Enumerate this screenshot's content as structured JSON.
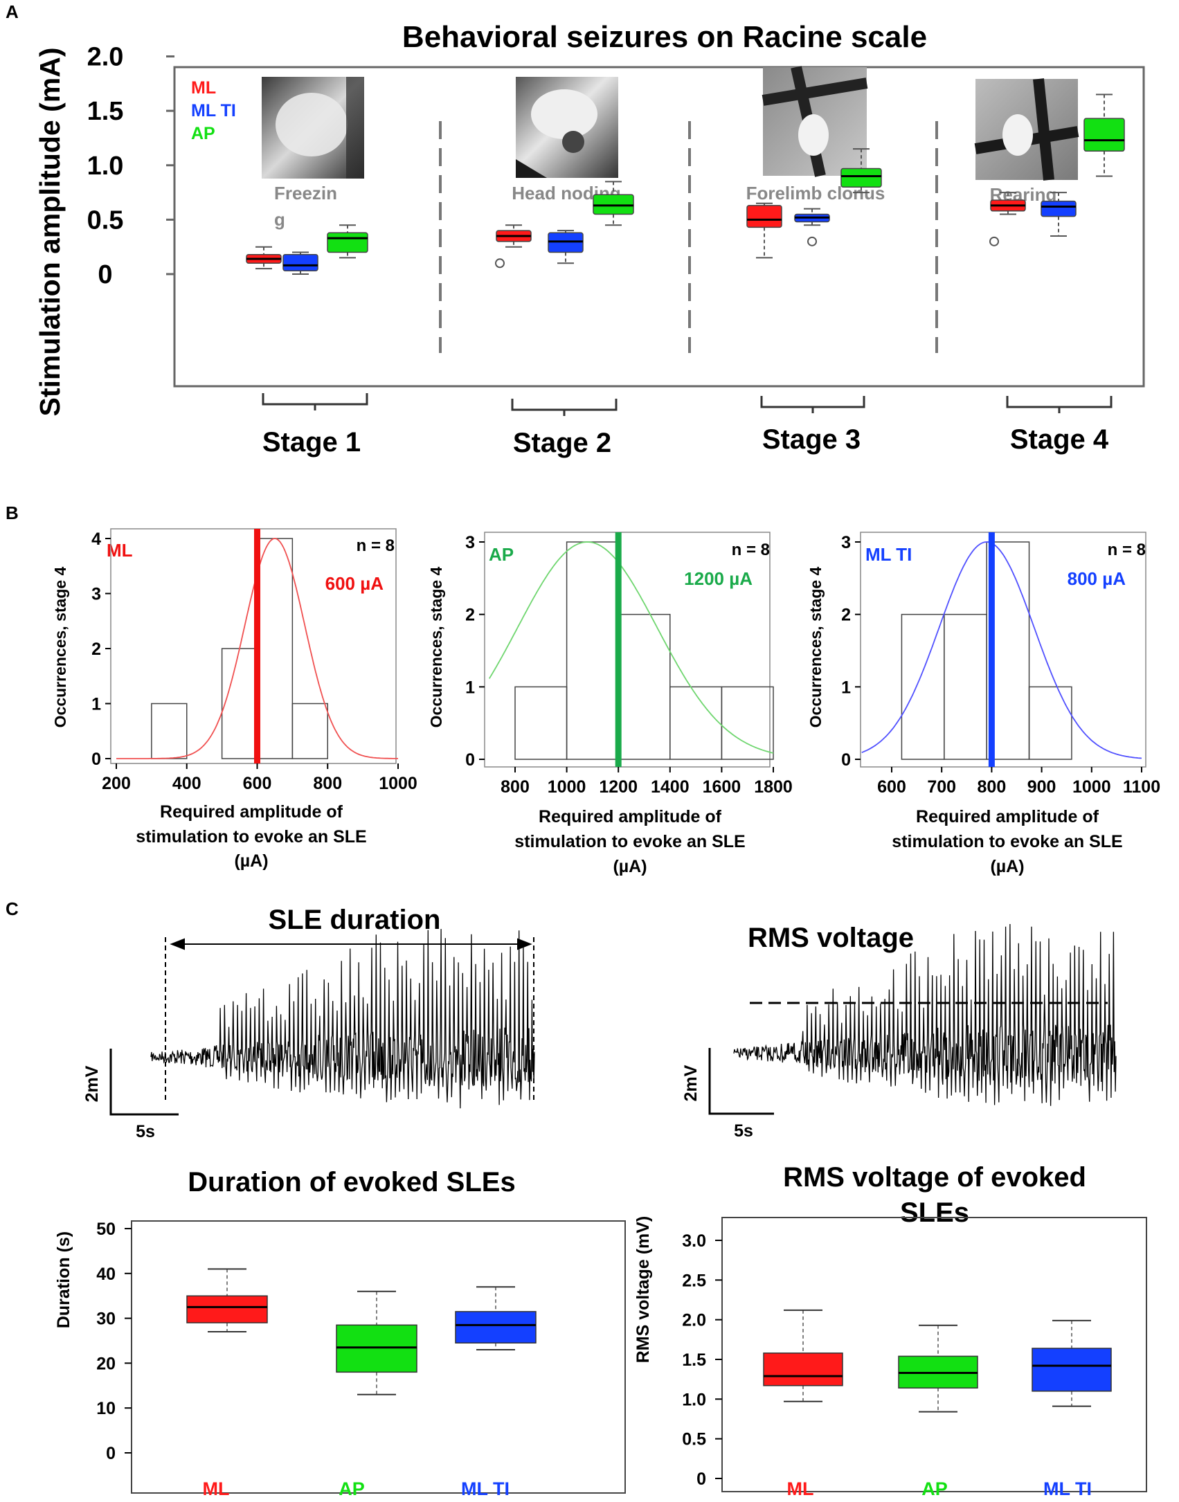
{
  "colors": {
    "ML": "#ff1a1a",
    "AP": "#12e012",
    "MLTI": "#1440ff",
    "APline": "#1aaa4a",
    "MLline": "#f01010",
    "grey": "#808080",
    "dark": "#000000"
  },
  "panelA": {
    "label": "A",
    "title": "Behavioral seizures on Racine scale",
    "ylabel": "Stimulation amplitude (mA)",
    "yticks": [
      "2.0",
      "1.5",
      "1.0",
      "0.5",
      "0"
    ],
    "legend": [
      "ML",
      "ML TI",
      "AP"
    ],
    "behaviors": [
      "Freezin",
      "g",
      "Head noding",
      "Forelimb clonus",
      "Rearing"
    ],
    "stages": [
      "Stage 1",
      "Stage 2",
      "Stage 3",
      "Stage 4"
    ],
    "photo_labels": [
      "freezing-photo",
      "head-noding-photo",
      "forelimb-clonus-photo",
      "rearing-photo"
    ]
  },
  "panelB": {
    "label": "B",
    "ylabel": "Occurrences, stage 4",
    "xlabel_line1": "Required amplitude of",
    "xlabel_line2": "stimulation to evoke an SLE",
    "xlabel_line3": "(µA)",
    "charts": [
      {
        "name": "ML",
        "n": "n = 8",
        "value_label": "600 µA"
      },
      {
        "name": "AP",
        "n": "n = 8",
        "value_label": "1200 µA"
      },
      {
        "name": "ML TI",
        "n": "n = 8",
        "value_label": "800 µA"
      }
    ]
  },
  "panelC": {
    "label": "C",
    "trace1_title": "SLE duration",
    "trace2_title": "RMS voltage",
    "scale_v": "2mV",
    "scale_t": "5s",
    "box1_title": "Duration of evoked SLEs",
    "box1_ylabel": "Duration (s)",
    "box2_title_line1": "RMS voltage of evoked",
    "box2_title_line2": "SLEs",
    "box2_ylabel": "RMS voltage (mV)",
    "groups": [
      "ML",
      "AP",
      "ML TI"
    ]
  },
  "chart_data": [
    {
      "type": "box",
      "title": "Behavioral seizures on Racine scale",
      "ylabel": "Stimulation amplitude (mA)",
      "ylim": [
        0,
        2.0
      ],
      "yticks": [
        0,
        0.5,
        1.0,
        1.5,
        2.0
      ],
      "categories": [
        "Stage 1",
        "Stage 2",
        "Stage 3",
        "Stage 4"
      ],
      "series": [
        {
          "name": "ML",
          "color": "#ff1a1a",
          "boxes": [
            {
              "min": 0.05,
              "q1": 0.1,
              "median": 0.14,
              "q3": 0.18,
              "max": 0.25,
              "outliers": []
            },
            {
              "min": 0.25,
              "q1": 0.3,
              "median": 0.35,
              "q3": 0.4,
              "max": 0.45,
              "outliers": [
                0.1
              ]
            },
            {
              "min": 0.15,
              "q1": 0.43,
              "median": 0.5,
              "q3": 0.63,
              "max": 0.65,
              "outliers": []
            },
            {
              "min": 0.55,
              "q1": 0.58,
              "median": 0.63,
              "q3": 0.68,
              "max": 0.75,
              "outliers": [
                0.3
              ]
            }
          ]
        },
        {
          "name": "ML TI",
          "color": "#1440ff",
          "boxes": [
            {
              "min": 0.0,
              "q1": 0.03,
              "median": 0.08,
              "q3": 0.18,
              "max": 0.2,
              "outliers": []
            },
            {
              "min": 0.1,
              "q1": 0.2,
              "median": 0.3,
              "q3": 0.38,
              "max": 0.4,
              "outliers": []
            },
            {
              "min": 0.45,
              "q1": 0.48,
              "median": 0.52,
              "q3": 0.55,
              "max": 0.6,
              "outliers": [
                0.3
              ]
            },
            {
              "min": 0.35,
              "q1": 0.53,
              "median": 0.62,
              "q3": 0.67,
              "max": 0.75,
              "outliers": []
            }
          ]
        },
        {
          "name": "AP",
          "color": "#12e012",
          "boxes": [
            {
              "min": 0.15,
              "q1": 0.2,
              "median": 0.33,
              "q3": 0.38,
              "max": 0.45,
              "outliers": []
            },
            {
              "min": 0.45,
              "q1": 0.55,
              "median": 0.63,
              "q3": 0.73,
              "max": 0.85,
              "outliers": []
            },
            {
              "min": 0.75,
              "q1": 0.8,
              "median": 0.9,
              "q3": 0.97,
              "max": 1.15,
              "outliers": []
            },
            {
              "min": 0.9,
              "q1": 1.13,
              "median": 1.23,
              "q3": 1.43,
              "max": 1.65,
              "outliers": []
            }
          ]
        }
      ]
    },
    {
      "type": "histogram",
      "title": "ML",
      "xlabel": "Required amplitude of stimulation to evoke an SLE (µA)",
      "ylabel": "Occurrences, stage 4",
      "xlim": [
        200,
        1000
      ],
      "xticks": [
        200,
        400,
        600,
        800,
        1000
      ],
      "ylim": [
        0,
        4
      ],
      "yticks": [
        0,
        1,
        2,
        3,
        4
      ],
      "bins": [
        [
          300,
          400,
          1
        ],
        [
          400,
          500,
          0
        ],
        [
          500,
          600,
          2
        ],
        [
          600,
          700,
          4
        ],
        [
          700,
          800,
          1
        ]
      ],
      "marker": 600,
      "normal_fit": {
        "mean": 650,
        "sd": 85,
        "peak": 4
      },
      "n": 8
    },
    {
      "type": "histogram",
      "title": "AP",
      "xlabel": "Required amplitude of stimulation to evoke an SLE (µA)",
      "ylabel": "Occurrences, stage 4",
      "xlim": [
        700,
        1800
      ],
      "xticks": [
        800,
        1000,
        1200,
        1400,
        1600,
        1800
      ],
      "ylim": [
        0,
        3
      ],
      "yticks": [
        0,
        1,
        2,
        3
      ],
      "bins": [
        [
          800,
          1000,
          1
        ],
        [
          1000,
          1200,
          3
        ],
        [
          1200,
          1400,
          2
        ],
        [
          1400,
          1600,
          1
        ],
        [
          1600,
          1800,
          1
        ]
      ],
      "marker": 1200,
      "normal_fit": {
        "mean": 1080,
        "sd": 270,
        "peak": 3
      },
      "n": 8
    },
    {
      "type": "histogram",
      "title": "ML TI",
      "xlabel": "Required amplitude of stimulation to evoke an SLE (µA)",
      "ylabel": "Occurrences, stage 4",
      "xlim": [
        540,
        1100
      ],
      "xticks": [
        600,
        700,
        800,
        900,
        1000,
        1100
      ],
      "ylim": [
        0,
        3
      ],
      "yticks": [
        0,
        1,
        2,
        3
      ],
      "bins": [
        [
          620,
          705,
          2
        ],
        [
          705,
          790,
          2
        ],
        [
          790,
          875,
          3
        ],
        [
          875,
          960,
          1
        ]
      ],
      "marker": 800,
      "normal_fit": {
        "mean": 790,
        "sd": 95,
        "peak": 3
      },
      "n": 8
    },
    {
      "type": "box",
      "title": "Duration of evoked SLEs",
      "ylabel": "Duration (s)",
      "ylim": [
        0,
        50
      ],
      "yticks": [
        0,
        10,
        20,
        30,
        40,
        50
      ],
      "categories": [
        "ML",
        "AP",
        "ML TI"
      ],
      "boxes": [
        {
          "name": "ML",
          "color": "#ff1a1a",
          "min": 27,
          "q1": 29,
          "median": 32.5,
          "q3": 35,
          "max": 41
        },
        {
          "name": "AP",
          "color": "#12e012",
          "min": 13,
          "q1": 18,
          "median": 23.5,
          "q3": 28.5,
          "max": 36
        },
        {
          "name": "ML TI",
          "color": "#1440ff",
          "min": 23,
          "q1": 24.5,
          "median": 28.5,
          "q3": 31.5,
          "max": 37
        }
      ]
    },
    {
      "type": "box",
      "title": "RMS voltage of evoked SLEs",
      "ylabel": "RMS voltage (mV)",
      "ylim": [
        0,
        3.0
      ],
      "yticks": [
        0,
        0.5,
        1.0,
        1.5,
        2.0,
        2.5,
        3.0
      ],
      "categories": [
        "ML",
        "AP",
        "ML TI"
      ],
      "boxes": [
        {
          "name": "ML",
          "color": "#ff1a1a",
          "min": 0.97,
          "q1": 1.17,
          "median": 1.29,
          "q3": 1.58,
          "max": 2.12
        },
        {
          "name": "AP",
          "color": "#12e012",
          "min": 0.84,
          "q1": 1.14,
          "median": 1.33,
          "q3": 1.54,
          "max": 1.93
        },
        {
          "name": "ML TI",
          "color": "#1440ff",
          "min": 0.91,
          "q1": 1.1,
          "median": 1.42,
          "q3": 1.64,
          "max": 1.99
        }
      ]
    }
  ]
}
